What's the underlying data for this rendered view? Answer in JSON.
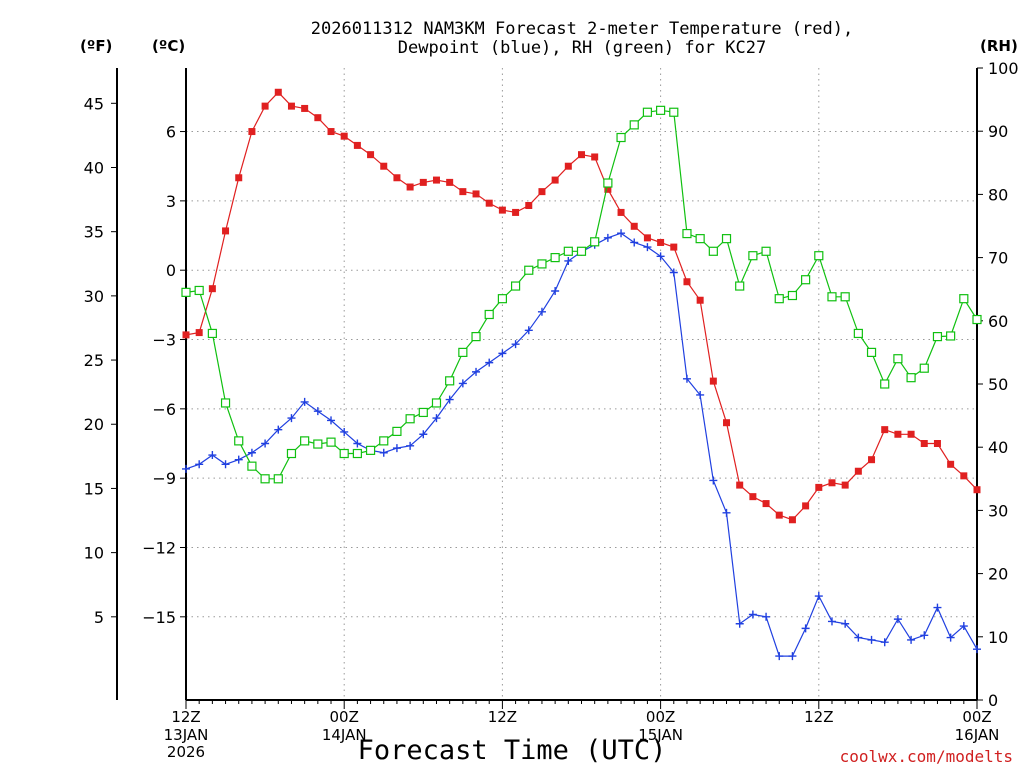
{
  "chart_data": {
    "type": "line",
    "title_line1": "2026011312 NAM3KM Forecast 2-meter Temperature (red),",
    "title_line2": "Dewpoint (blue), RH (green) for KC27",
    "unit_f": "(ºF)",
    "unit_c": "(ºC)",
    "unit_rh": "(RH)",
    "xlabel": "Forecast Time (UTC)",
    "credit": "coolwx.com/modelts",
    "colors": {
      "temperature": "#e02020",
      "dewpoint": "#2040e0",
      "rh": "#10c010",
      "credit": "#d02020"
    },
    "x_range_hours": [
      0,
      60
    ],
    "x_ticks": [
      {
        "h": 0,
        "l1": "12Z",
        "l2": "13JAN",
        "l3": "2026"
      },
      {
        "h": 12,
        "l1": "00Z",
        "l2": "14JAN",
        "l3": ""
      },
      {
        "h": 24,
        "l1": "12Z",
        "l2": "",
        "l3": ""
      },
      {
        "h": 36,
        "l1": "00Z",
        "l2": "15JAN",
        "l3": ""
      },
      {
        "h": 48,
        "l1": "12Z",
        "l2": "",
        "l3": ""
      },
      {
        "h": 60,
        "l1": "00Z",
        "l2": "16JAN",
        "l3": ""
      }
    ],
    "celsius_range": [
      -18.6,
      8.75
    ],
    "celsius_ticks": [
      6,
      3,
      0,
      -3,
      -6,
      -9,
      -12,
      -15
    ],
    "celsius_tick_labels": [
      "6",
      "3",
      "0",
      "−3",
      "−6",
      "−9",
      "−12",
      "−15"
    ],
    "fahrenheit_ticks": [
      45,
      40,
      35,
      30,
      25,
      20,
      15,
      10,
      5
    ],
    "fahrenheit_tick_labels": [
      "45",
      "40",
      "35",
      "30",
      "25",
      "20",
      "15",
      "10",
      "5"
    ],
    "rh_range": [
      0,
      100
    ],
    "rh_ticks": [
      0,
      10,
      20,
      30,
      40,
      50,
      60,
      70,
      80,
      90,
      100
    ],
    "rh_tick_labels": [
      "0",
      "10",
      "20",
      "30",
      "40",
      "50",
      "60",
      "70",
      "80",
      "90",
      "100"
    ],
    "series": [
      {
        "name": "2-meter Temperature",
        "unit": "C",
        "marker": "filled-square",
        "values": [
          -2.8,
          -2.7,
          -0.8,
          1.7,
          4.0,
          6.0,
          7.1,
          7.7,
          7.1,
          7.0,
          6.6,
          6.0,
          5.8,
          5.4,
          5.0,
          4.5,
          4.0,
          3.6,
          3.8,
          3.9,
          3.8,
          3.4,
          3.3,
          2.9,
          2.6,
          2.5,
          2.8,
          3.4,
          3.9,
          4.5,
          5.0,
          4.9,
          3.5,
          2.5,
          1.9,
          1.4,
          1.2,
          1.0,
          -0.5,
          -1.3,
          -4.8,
          -6.6,
          -9.3,
          -9.8,
          -10.1,
          -10.6,
          -10.8,
          -10.2,
          -9.4,
          -9.2,
          -9.3,
          -8.7,
          -8.2,
          -6.9,
          -7.1,
          -7.1,
          -7.5,
          -7.5,
          -8.4,
          -8.9,
          -9.5
        ]
      },
      {
        "name": "Dewpoint",
        "unit": "C",
        "marker": "plus",
        "values": [
          -8.6,
          -8.4,
          -8.0,
          -8.4,
          -8.2,
          -7.9,
          -7.5,
          -6.9,
          -6.4,
          -5.7,
          -6.1,
          -6.5,
          -7.0,
          -7.5,
          -7.8,
          -7.9,
          -7.7,
          -7.6,
          -7.1,
          -6.4,
          -5.6,
          -4.9,
          -4.4,
          -4.0,
          -3.6,
          -3.2,
          -2.6,
          -1.8,
          -0.9,
          0.4,
          0.8,
          1.1,
          1.4,
          1.6,
          1.2,
          1.0,
          0.6,
          -0.1,
          -4.7,
          -5.4,
          -9.1,
          -10.5,
          -15.3,
          -14.9,
          -15.0,
          -16.7,
          -16.7,
          -15.5,
          -14.1,
          -15.2,
          -15.3,
          -15.9,
          -16.0,
          -16.1,
          -15.1,
          -16.0,
          -15.8,
          -14.6,
          -15.9,
          -15.4,
          -16.4
        ]
      },
      {
        "name": "RH",
        "unit": "%",
        "marker": "open-square",
        "values": [
          64.5,
          64.8,
          58.0,
          47.0,
          41.0,
          37.0,
          35.0,
          35.0,
          39.0,
          41.0,
          40.5,
          40.8,
          39.0,
          39.0,
          39.5,
          41.0,
          42.5,
          44.5,
          45.5,
          47.0,
          50.5,
          55.0,
          57.5,
          61.0,
          63.5,
          65.5,
          68.0,
          69.0,
          70.0,
          71.0,
          71.0,
          72.5,
          81.8,
          89.0,
          91.0,
          93.0,
          93.3,
          93.0,
          73.8,
          73.0,
          71.0,
          73.0,
          65.5,
          70.3,
          71.0,
          63.5,
          64.0,
          66.5,
          70.3,
          63.8,
          63.8,
          58.0,
          55.0,
          50.0,
          54.0,
          51.0,
          52.5,
          57.5,
          57.6,
          63.5,
          60.2
        ]
      }
    ]
  }
}
